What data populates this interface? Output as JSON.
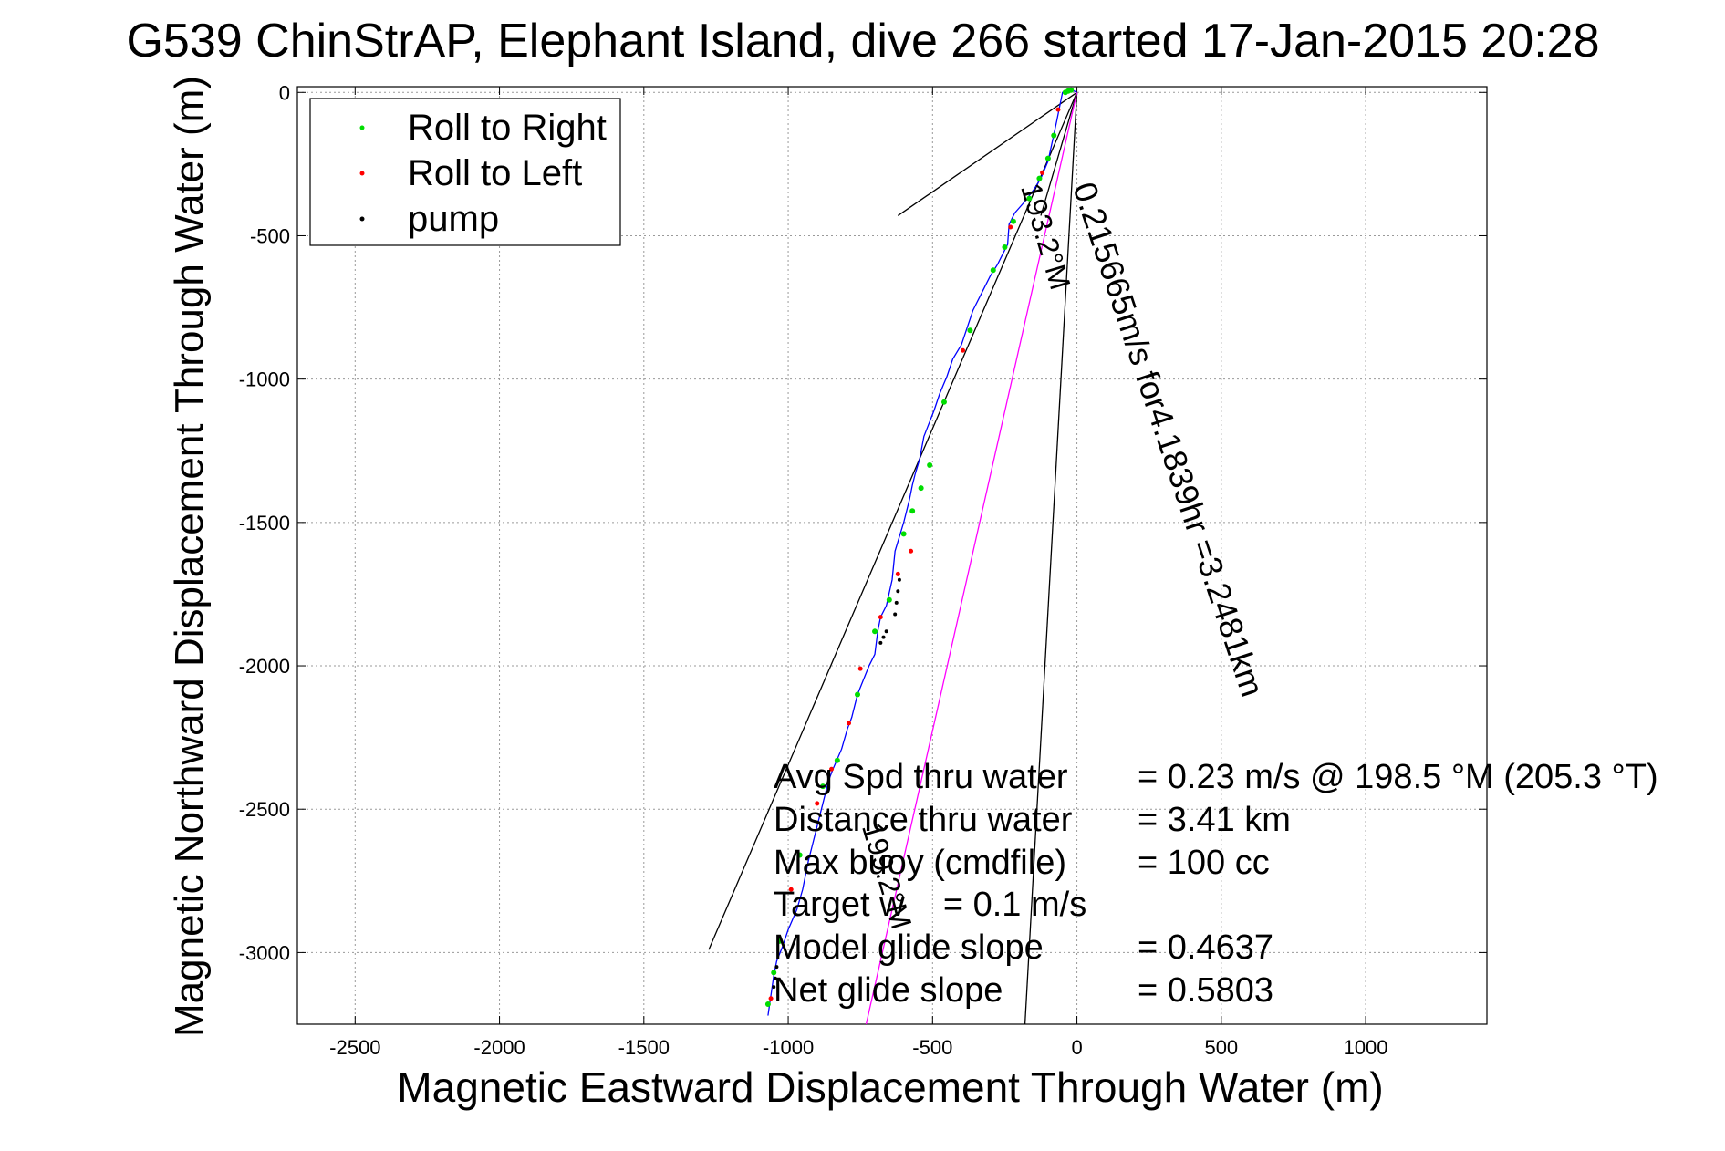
{
  "chart_data": {
    "type": "line",
    "title": "G539 ChinStrAP, Elephant Island, dive 266 started 17-Jan-2015 20:28",
    "xlabel": "Magnetic Eastward Displacement Through Water (m)",
    "ylabel": "Magnetic Northward Displacement Through Water (m)",
    "xlim": [
      -2700,
      1420
    ],
    "ylim": [
      -3250,
      20
    ],
    "xticks": [
      -2500,
      -2000,
      -1500,
      -1000,
      -500,
      0,
      500,
      1000
    ],
    "xtick_labels": [
      "-2500",
      "-2000",
      "-1500",
      "-1000",
      "-500",
      "0",
      "500",
      "1000"
    ],
    "yticks": [
      0,
      -500,
      -1000,
      -1500,
      -2000,
      -2500,
      -3000
    ],
    "ytick_labels": [
      "0",
      "-500",
      "-1000",
      "-1500",
      "-2000",
      "-2500",
      "-3000"
    ],
    "grid": true,
    "legend_position": "top-left",
    "legend": [
      {
        "label": "Roll to Right",
        "color": "#00dd00"
      },
      {
        "label": "Roll to Left",
        "color": "#ff0000"
      },
      {
        "label": "pump",
        "color": "#000000"
      }
    ],
    "track": {
      "name": "glider track",
      "color": "#0000ff",
      "x": [
        0,
        -10,
        -30,
        -50,
        -60,
        -70,
        -85,
        -100,
        -125,
        -150,
        -180,
        -215,
        -235,
        -240,
        -255,
        -275,
        -300,
        -330,
        -360,
        -380,
        -400,
        -430,
        -450,
        -475,
        -495,
        -530,
        -545,
        -560,
        -570,
        -580,
        -600,
        -615,
        -630,
        -640,
        -660,
        -680,
        -690,
        -700,
        -720,
        -760,
        -780,
        -795,
        -815,
        -845,
        -860,
        -880,
        -900,
        -930,
        -950,
        -970,
        -1000,
        -1020,
        -1040,
        -1050,
        -1060,
        -1070
      ],
      "y": [
        0,
        5,
        10,
        0,
        -50,
        -100,
        -170,
        -240,
        -300,
        -340,
        -380,
        -420,
        -460,
        -530,
        -560,
        -600,
        -640,
        -700,
        -760,
        -820,
        -880,
        -930,
        -990,
        -1050,
        -1110,
        -1200,
        -1280,
        -1330,
        -1370,
        -1420,
        -1500,
        -1550,
        -1600,
        -1700,
        -1790,
        -1830,
        -1880,
        -1960,
        -2000,
        -2100,
        -2180,
        -2220,
        -2290,
        -2360,
        -2400,
        -2480,
        -2560,
        -2680,
        -2780,
        -2850,
        -2920,
        -2980,
        -3030,
        -3080,
        -3150,
        -3220
      ]
    },
    "markers": {
      "roll_right": {
        "x": [
          -20,
          -30,
          -40,
          -80,
          -100,
          -130,
          -165,
          -220,
          -250,
          -290,
          -370,
          -460,
          -510,
          -540,
          -570,
          -600,
          -650,
          -700,
          -760,
          -830,
          -880,
          -960,
          -1030,
          -1050,
          -1070
        ],
        "y": [
          8,
          5,
          0,
          -150,
          -230,
          -300,
          -370,
          -450,
          -540,
          -620,
          -830,
          -1080,
          -1300,
          -1380,
          -1460,
          -1540,
          -1770,
          -1880,
          -2100,
          -2330,
          -2420,
          -2660,
          -2960,
          -3070,
          -3180
        ]
      },
      "roll_left": {
        "x": [
          -65,
          -120,
          -230,
          -395,
          -575,
          -620,
          -680,
          -750,
          -790,
          -850,
          -900,
          -990,
          -1060
        ],
        "y": [
          -60,
          -280,
          -470,
          -900,
          -1600,
          -1680,
          -1830,
          -2010,
          -2200,
          -2360,
          -2480,
          -2780,
          -3160
        ]
      },
      "pump": {
        "x": [
          -615,
          -620,
          -625,
          -630,
          -660,
          -670,
          -680,
          -1040,
          -1045,
          -1050
        ],
        "y": [
          -1700,
          -1740,
          -1780,
          -1820,
          -1880,
          -1900,
          -1920,
          -3050,
          -3090,
          -3120
        ]
      }
    },
    "reference_lines": [
      {
        "name": "envelope-line-1",
        "color": "#000000",
        "x": [
          0,
          -1275
        ],
        "y": [
          0,
          -2990
        ]
      },
      {
        "name": "envelope-line-2",
        "color": "#000000",
        "x": [
          0,
          -180
        ],
        "y": [
          0,
          -3250
        ]
      },
      {
        "name": "envelope-line-3",
        "color": "#000000",
        "x": [
          0,
          -620
        ],
        "y": [
          0,
          -430
        ]
      },
      {
        "name": "envelope-line-4",
        "color": "#000000",
        "x": [
          0,
          -125
        ],
        "y": [
          0,
          -430
        ]
      },
      {
        "name": "avg-heading-line",
        "color": "#ff00ff",
        "x": [
          0,
          -730
        ],
        "y": [
          0,
          -3250
        ]
      }
    ],
    "line_labels": [
      {
        "text": "0.215665m/s for4.1839hr =3.2481km",
        "x": -15,
        "y": -330
      },
      {
        "text": "193.2°M",
        "x": -195,
        "y": -330
      },
      {
        "text": "199.2°M",
        "x": -745,
        "y": -2560
      }
    ],
    "annotations": [
      {
        "label": "Avg Spd thru water",
        "value": "=  0.23 m/s @ 198.5 °M (205.3 °T)"
      },
      {
        "label": "Distance thru water",
        "value": "=  3.41 km"
      },
      {
        "label": "Max buoy (cmdfile)",
        "value": "= 100 cc"
      },
      {
        "label": "Target w    = 0.1 m/s",
        "value": ""
      },
      {
        "label": "Model glide slope",
        "value": "= 0.4637"
      },
      {
        "label": "Net glide slope",
        "value": "= 0.5803"
      }
    ]
  }
}
